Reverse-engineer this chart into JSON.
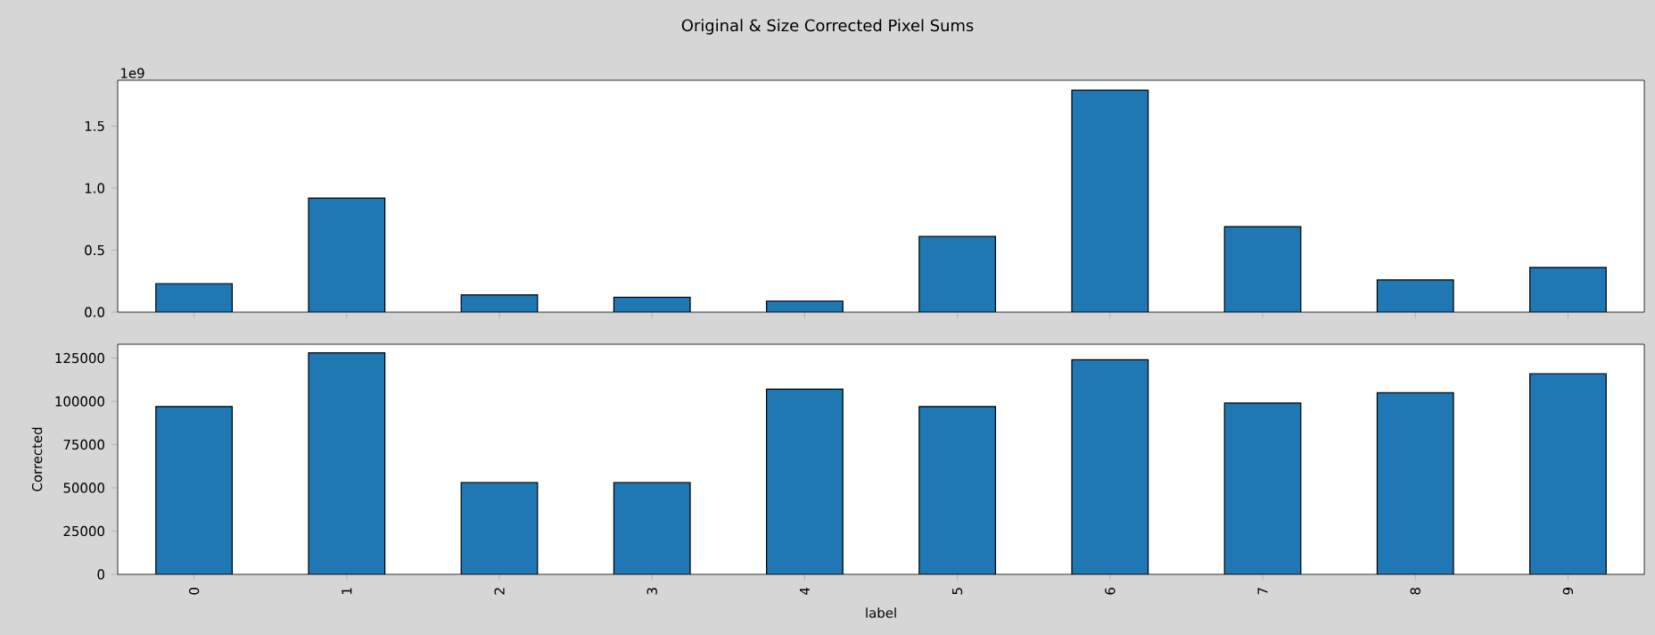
{
  "chart_data": [
    {
      "type": "bar",
      "title": "Original & Size Corrected Pixel Sums",
      "annotations": [
        "1e9"
      ],
      "categories": [
        "0",
        "1",
        "2",
        "3",
        "4",
        "5",
        "6",
        "7",
        "8",
        "9"
      ],
      "values": [
        0.23,
        0.92,
        0.14,
        0.12,
        0.09,
        0.61,
        1.79,
        0.69,
        0.26,
        0.36
      ],
      "color": "#1f77b4",
      "ylim": [
        0,
        1.87
      ],
      "yticks": [
        {
          "value": 0,
          "label": "0.0"
        },
        0.5,
        {
          "value": 1,
          "label": "1.0"
        },
        1.5
      ],
      "tick_labels": "y"
    },
    {
      "type": "bar",
      "xlabel": "label",
      "ylabel": "Corrected",
      "categories": [
        "0",
        "1",
        "2",
        "3",
        "4",
        "5",
        "6",
        "7",
        "8",
        "9"
      ],
      "values": [
        97000,
        128000,
        53000,
        53000,
        107000,
        97000,
        124000,
        99000,
        105000,
        116000
      ],
      "color": "#1f77b4",
      "ylim": [
        0,
        133000
      ],
      "yticks": [
        0,
        25000,
        50000,
        75000,
        100000,
        125000
      ]
    }
  ]
}
